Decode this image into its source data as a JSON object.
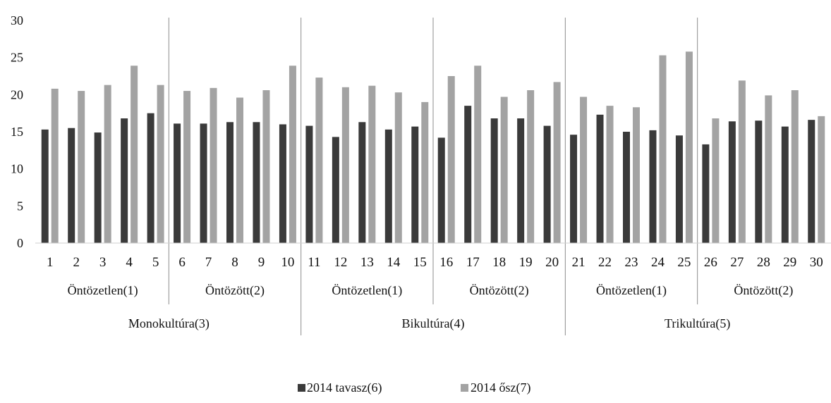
{
  "chart_data": {
    "type": "bar",
    "categories": [
      "1",
      "2",
      "3",
      "4",
      "5",
      "6",
      "7",
      "8",
      "9",
      "10",
      "11",
      "12",
      "13",
      "14",
      "15",
      "16",
      "17",
      "18",
      "19",
      "20",
      "21",
      "22",
      "23",
      "24",
      "25",
      "26",
      "27",
      "28",
      "29",
      "30"
    ],
    "series": [
      {
        "name": "2014 tavasz(6)",
        "color": "#3a3a3a",
        "values": [
          15.3,
          15.5,
          14.9,
          16.8,
          17.5,
          16.1,
          16.1,
          16.3,
          16.3,
          16.0,
          15.8,
          14.3,
          16.3,
          15.3,
          15.7,
          14.2,
          18.5,
          16.8,
          16.8,
          15.8,
          14.6,
          17.3,
          15.0,
          15.2,
          14.5,
          13.3,
          16.4,
          16.5,
          15.7,
          16.6
        ]
      },
      {
        "name": "2014 ősz(7)",
        "color": "#a3a3a3",
        "values": [
          20.8,
          20.5,
          21.3,
          23.9,
          21.3,
          20.5,
          20.9,
          19.6,
          20.6,
          23.9,
          22.3,
          21.0,
          21.2,
          20.3,
          19.0,
          22.5,
          23.9,
          19.7,
          20.6,
          21.7,
          19.7,
          18.5,
          18.3,
          25.3,
          25.8,
          16.8,
          21.9,
          19.9,
          20.6,
          17.1
        ]
      }
    ],
    "ylim": [
      0,
      30
    ],
    "yticks": [
      "0",
      "5",
      "10",
      "15",
      "20",
      "25",
      "30"
    ],
    "subgroups": [
      "Öntözetlen(1)",
      "Öntözött(2)",
      "Öntözetlen(1)",
      "Öntözött(2)",
      "Öntözetlen(1)",
      "Öntözött(2)"
    ],
    "groups": [
      "Monokultúra(3)",
      "Bikultúra(4)",
      "Trikultúra(5)"
    ],
    "grid": false,
    "legend_position": "bottom-center"
  }
}
